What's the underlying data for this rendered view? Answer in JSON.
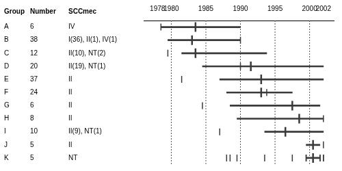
{
  "chart_data": {
    "type": "range",
    "orientation": "horizontal",
    "categories": [
      "A",
      "B",
      "C",
      "D",
      "E",
      "F",
      "G",
      "H",
      "I",
      "J",
      "K"
    ],
    "low": [
      1978.5,
      1979.5,
      1981.5,
      1984.5,
      1987.0,
      1988.0,
      1988.5,
      1989.5,
      1993.5,
      1999.5,
      1999.5
    ],
    "high": [
      1990.0,
      1990.0,
      1993.8,
      2002.0,
      2002.0,
      1997.5,
      2001.5,
      2002.0,
      2002.0,
      2001.5,
      2001.5
    ],
    "median": [
      1983.5,
      1983.0,
      1983.5,
      1991.5,
      1993.0,
      1993.0,
      1997.5,
      1998.5,
      1996.5,
      2000.5,
      2000.5
    ],
    "xlim": [
      1976.0,
      2003.5
    ],
    "xticks": [
      1978,
      1980,
      1985,
      1990,
      1995,
      2000,
      2002
    ],
    "vlines": [
      1980,
      1985,
      1990,
      1995,
      2000
    ],
    "color": "#3a3a3a",
    "tick_labels": "x",
    "table_columns": [
      "Group",
      "Number",
      "SCCmec"
    ],
    "numbers": [
      6,
      38,
      12,
      20,
      37,
      24,
      6,
      8,
      10,
      5,
      5
    ],
    "sccmec": [
      "IV",
      "I(36), II(1), IV(1)",
      "II(10), NT(2)",
      "II(19), NT(1)",
      "II",
      "II",
      "II",
      "II",
      "II(9), NT(1)",
      "II",
      "NT"
    ]
  }
}
